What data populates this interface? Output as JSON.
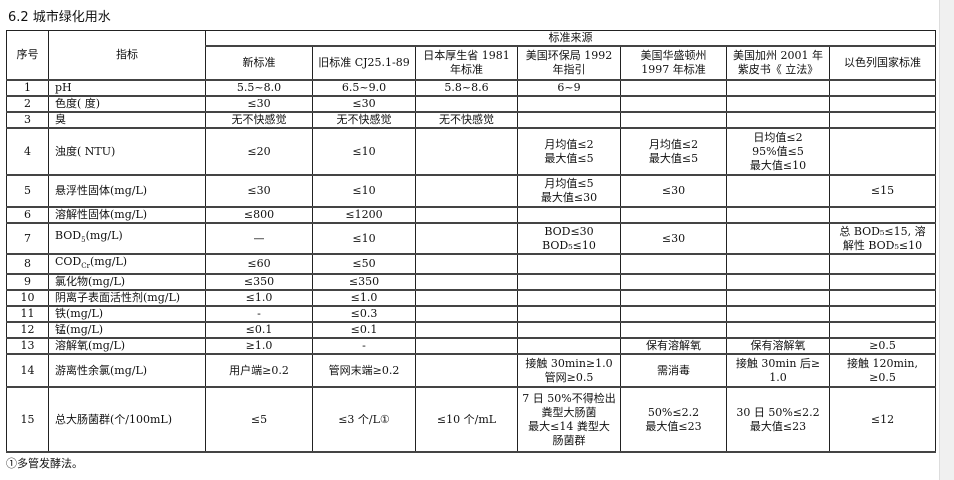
{
  "title": "6.2  城市绿化用水",
  "header": {
    "no": "序号",
    "indicator": "指标",
    "source_group": "标准来源",
    "columns": [
      "新标准",
      "旧标准 CJ25.1-89",
      "日本厚生省 1981\n年标准",
      "美国环保局 1992\n年指引",
      "美国华盛顿州\n1997 年标准",
      "美国加州 2001 年\n紫皮书《 立法》",
      "以色列国家标准"
    ]
  },
  "rows": [
    {
      "no": "1",
      "ind": "pH",
      "sub": "",
      "tail": "",
      "h": 14,
      "cells": [
        "5.5~8.0",
        "6.5~9.0",
        "5.8~8.6",
        "6~9",
        "",
        "",
        ""
      ]
    },
    {
      "no": "2",
      "ind": "色度( 度)",
      "sub": "",
      "tail": "",
      "h": 16,
      "cells": [
        "≤30",
        "≤30",
        "",
        "",
        "",
        "",
        ""
      ]
    },
    {
      "no": "3",
      "ind": "臭",
      "sub": "",
      "tail": "",
      "h": 15,
      "cells": [
        "无不快感觉",
        "无不快感觉",
        "无不快感觉",
        "",
        "",
        "",
        ""
      ]
    },
    {
      "no": "4",
      "ind": "浊度( NTU)",
      "sub": "",
      "tail": "",
      "h": 47,
      "cells": [
        "≤20",
        "≤10",
        "",
        "月均值≤2\n最大值≤5",
        "月均值≤2\n最大值≤5",
        "日均值≤2\n95%值≤5\n最大值≤10",
        ""
      ]
    },
    {
      "no": "5",
      "ind": "悬浮性固体(mg/L)",
      "sub": "",
      "tail": "",
      "h": 32,
      "cells": [
        "≤30",
        "≤10",
        "",
        "月均值≤5\n最大值≤30",
        "≤30",
        "",
        "≤15"
      ]
    },
    {
      "no": "6",
      "ind": "溶解性固体(mg/L)",
      "sub": "",
      "tail": "",
      "h": 16,
      "cells": [
        "≤800",
        "≤1200",
        "",
        "",
        "",
        "",
        ""
      ]
    },
    {
      "no": "7",
      "ind": "BOD",
      "sub": "5",
      "tail": "(mg/L)",
      "h": 31,
      "cells": [
        "—",
        "≤10",
        "",
        "BOD≤30\nBOD₅≤10",
        "≤30",
        "",
        "总 BOD₅≤15, 溶\n解性 BOD₅≤10"
      ]
    },
    {
      "no": "8",
      "ind": "COD",
      "sub": "Cr",
      "tail": "(mg/L)",
      "h": 16,
      "cells": [
        "≤60",
        "≤50",
        "",
        "",
        "",
        "",
        ""
      ]
    },
    {
      "no": "9",
      "ind": "氯化物(mg/L)",
      "sub": "",
      "tail": "",
      "h": 15,
      "cells": [
        "≤350",
        "≤350",
        "",
        "",
        "",
        "",
        ""
      ]
    },
    {
      "no": "10",
      "ind": "阴离子表面活性剂(mg/L)",
      "sub": "",
      "tail": "",
      "h": 16,
      "cells": [
        "≤1.0",
        "≤1.0",
        "",
        "",
        "",
        "",
        ""
      ]
    },
    {
      "no": "11",
      "ind": "铁(mg/L)",
      "sub": "",
      "tail": "",
      "h": 15,
      "cells": [
        "-",
        "≤0.3",
        "",
        "",
        "",
        "",
        ""
      ]
    },
    {
      "no": "12",
      "ind": "锰(mg/L)",
      "sub": "",
      "tail": "",
      "h": 15,
      "cells": [
        "≤0.1",
        "≤0.1",
        "",
        "",
        "",
        "",
        ""
      ]
    },
    {
      "no": "13",
      "ind": "溶解氧(mg/L)",
      "sub": "",
      "tail": "",
      "h": 15,
      "cells": [
        "≥1.0",
        "-",
        "",
        "",
        "保有溶解氧",
        "保有溶解氧",
        "≥0.5"
      ]
    },
    {
      "no": "14",
      "ind": "游离性余氯(mg/L)",
      "sub": "",
      "tail": "",
      "h": 33,
      "cells": [
        "用户端≥0.2",
        "管网末端≥0.2",
        "",
        "接触 30min≥1.0\n管网≥0.5",
        "需消毒",
        "接触 30min 后≥\n1.0",
        "接触 120min,\n≥0.5"
      ]
    },
    {
      "no": "15",
      "ind": "总大肠菌群(个/100mL)",
      "sub": "",
      "tail": "",
      "h": 65,
      "cells": [
        "≤5",
        "≤3 个/L①",
        "≤10 个/mL",
        "7 日 50%不得检出\n粪型大肠菌\n最大≤14 粪型大\n肠菌群",
        "50%≤2.2\n最大值≤23",
        "30 日 50%≤2.2\n最大值≤23",
        "≤12"
      ]
    }
  ],
  "footnote": "①多管发酵法。"
}
